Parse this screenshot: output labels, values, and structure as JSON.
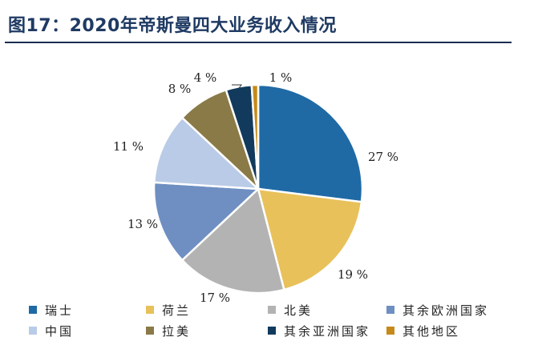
{
  "title": "图17：2020年帝斯曼四大业务收入情况",
  "chart_data": {
    "type": "pie",
    "title": "图17：2020年帝斯曼四大业务收入情况",
    "start_angle_deg": 0,
    "direction": "clockwise",
    "legend_position": "bottom",
    "slices": [
      {
        "label": "瑞士",
        "value": 27,
        "display": "27 %",
        "color": "#1f6aa5"
      },
      {
        "label": "荷兰",
        "value": 19,
        "display": "19 %",
        "color": "#e8c15a"
      },
      {
        "label": "北美",
        "value": 17,
        "display": "17 %",
        "color": "#b3b3b3"
      },
      {
        "label": "其余欧洲国家",
        "value": 13,
        "display": "13 %",
        "color": "#6f8fc2"
      },
      {
        "label": "中国",
        "value": 11,
        "display": "11 %",
        "color": "#b9cbe6"
      },
      {
        "label": "拉美",
        "value": 8,
        "display": "8 %",
        "color": "#8a7a47"
      },
      {
        "label": "其余亚洲国家",
        "value": 4,
        "display": "4 %",
        "color": "#123a5c"
      },
      {
        "label": "其他地区",
        "value": 1,
        "display": "1 %",
        "color": "#c68a1a"
      }
    ]
  }
}
